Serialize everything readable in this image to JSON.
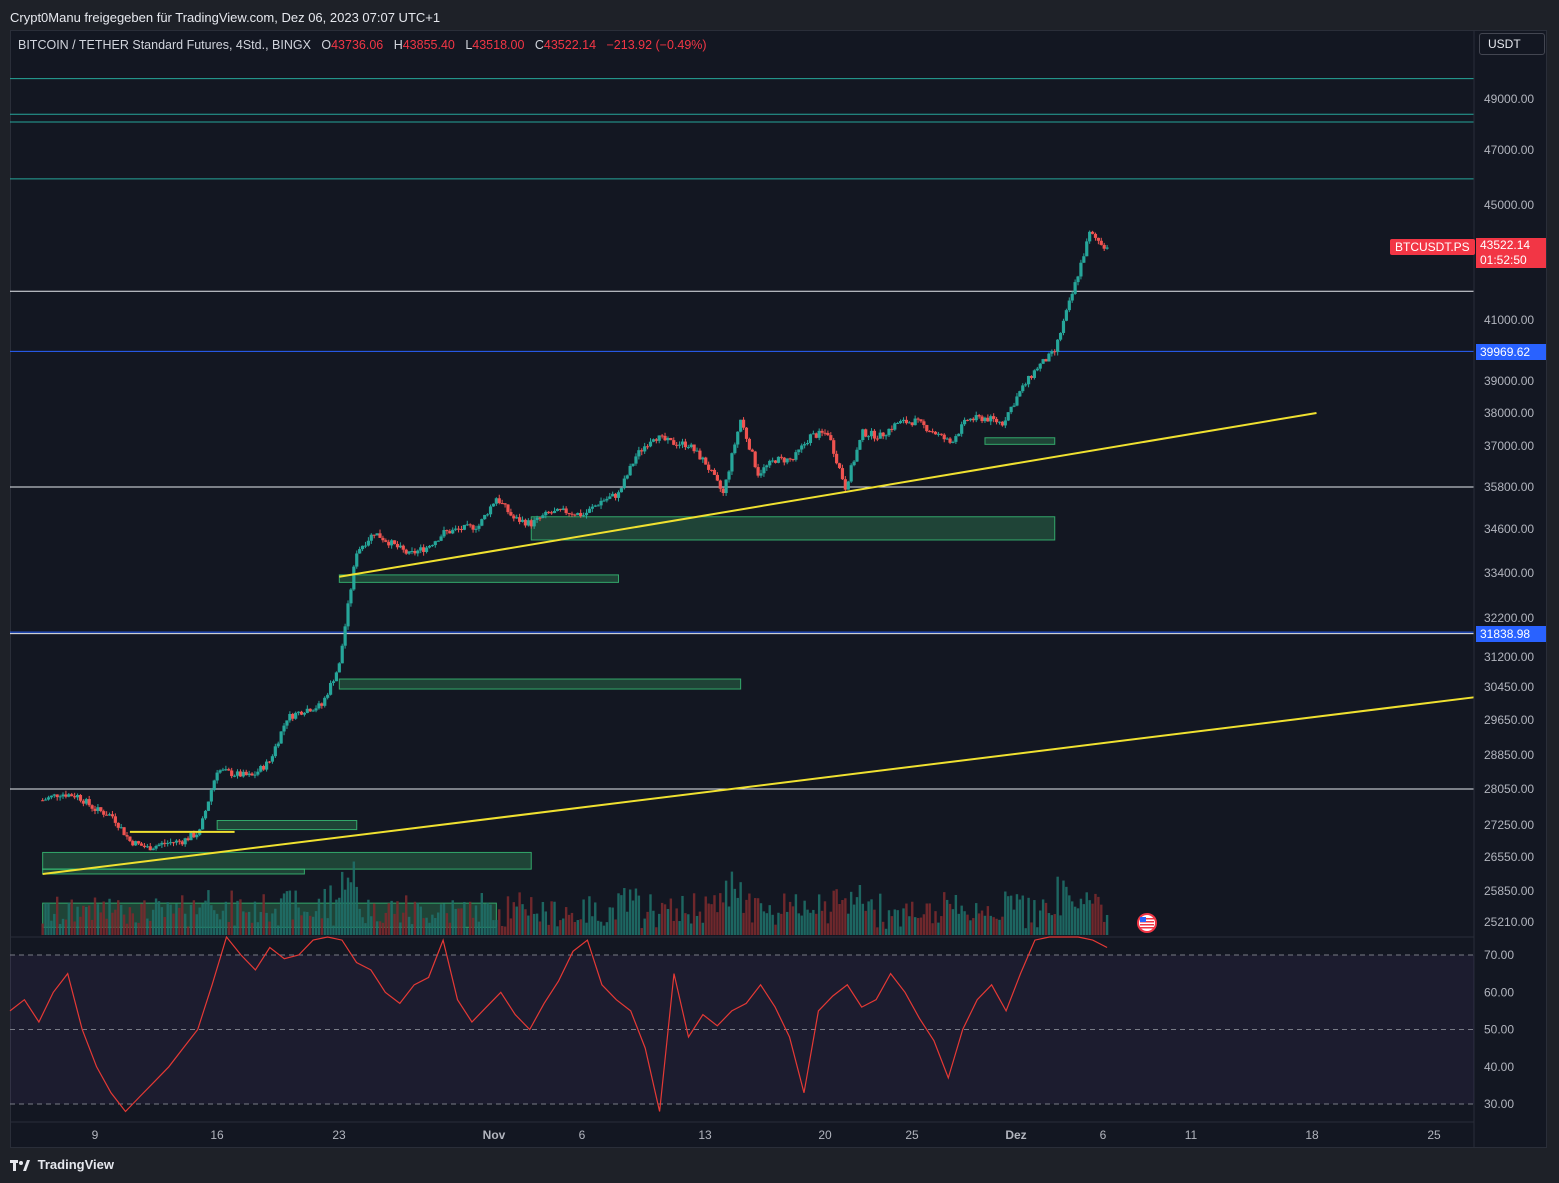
{
  "attribution": "Crypt0Manu freigegeben für TradingView.com, Dez 06, 2023 07:07 UTC+1",
  "symbol": {
    "title": "BITCOIN / TETHER Standard Futures, 4Std., BINGX",
    "o_label": "O",
    "o_value": "43736.06",
    "h_label": "H",
    "h_value": "43855.40",
    "l_label": "L",
    "l_value": "43518.00",
    "c_label": "C",
    "c_value": "43522.14",
    "change": "−213.92 (−0.49%)"
  },
  "currency_button": "USDT",
  "last_price": {
    "symbol_tag": "BTCUSDT.PS",
    "price": "43522.14",
    "countdown": "01:52:50"
  },
  "level_tags": {
    "upper_blue": "39969.62",
    "lower_blue": "31838.98"
  },
  "brand": "TradingView",
  "colors": {
    "background": "#131722",
    "up": "#26a69a",
    "down": "#ef5350",
    "trendline": "#f0e130",
    "zone": "#2e7d52",
    "blue_level": "#2962ff",
    "rsi_line": "#e53935"
  },
  "chart_data": [
    {
      "type": "candlestick",
      "title": "BITCOIN / TETHER Standard Futures, 4Std., BINGX",
      "y_ticks": [
        49000,
        47000,
        45000,
        41000,
        39000,
        38000,
        37000,
        35800,
        34600,
        33400,
        32200,
        31200,
        30450,
        29650,
        28850,
        28050,
        27250,
        26550,
        25850,
        25210
      ],
      "y_tick_labels": [
        "49000.00",
        "47000.00",
        "45000.00",
        "41000.00",
        "39000.00",
        "38000.00",
        "37000.00",
        "35800.00",
        "34600.00",
        "33400.00",
        "32200.00",
        "31200.00",
        "30450.00",
        "29650.00",
        "28850.00",
        "28050.00",
        "27250.00",
        "26550.00",
        "25850.00",
        "25210.00"
      ],
      "x_tick_labels": [
        "9",
        "16",
        "23",
        "Nov",
        "6",
        "13",
        "20",
        "25",
        "Dez",
        "6",
        "11",
        "18",
        "25"
      ],
      "close_path": [
        [
          "2023-10-06",
          27800
        ],
        [
          "2023-10-07",
          27950
        ],
        [
          "2023-10-08",
          27900
        ],
        [
          "2023-10-09",
          27600
        ],
        [
          "2023-10-10",
          27450
        ],
        [
          "2023-10-11",
          26900
        ],
        [
          "2023-10-12",
          26750
        ],
        [
          "2023-10-13",
          26850
        ],
        [
          "2023-10-14",
          26900
        ],
        [
          "2023-10-15",
          27100
        ],
        [
          "2023-10-16",
          28500
        ],
        [
          "2023-10-17",
          28400
        ],
        [
          "2023-10-18",
          28350
        ],
        [
          "2023-10-19",
          28700
        ],
        [
          "2023-10-20",
          29700
        ],
        [
          "2023-10-21",
          29900
        ],
        [
          "2023-10-22",
          30000
        ],
        [
          "2023-10-23",
          31000
        ],
        [
          "2023-10-24",
          34000
        ],
        [
          "2023-10-25",
          34500
        ],
        [
          "2023-10-26",
          34200
        ],
        [
          "2023-10-27",
          33900
        ],
        [
          "2023-10-28",
          34100
        ],
        [
          "2023-10-29",
          34500
        ],
        [
          "2023-10-30",
          34600
        ],
        [
          "2023-10-31",
          34700
        ],
        [
          "2023-11-01",
          35500
        ],
        [
          "2023-11-02",
          34900
        ],
        [
          "2023-11-03",
          34750
        ],
        [
          "2023-11-04",
          35050
        ],
        [
          "2023-11-05",
          35100
        ],
        [
          "2023-11-06",
          35000
        ],
        [
          "2023-11-07",
          35400
        ],
        [
          "2023-11-08",
          35600
        ],
        [
          "2023-11-09",
          36700
        ],
        [
          "2023-11-10",
          37300
        ],
        [
          "2023-11-11",
          37100
        ],
        [
          "2023-11-12",
          37050
        ],
        [
          "2023-11-13",
          36500
        ],
        [
          "2023-11-14",
          35600
        ],
        [
          "2023-11-15",
          37800
        ],
        [
          "2023-11-16",
          36200
        ],
        [
          "2023-11-17",
          36600
        ],
        [
          "2023-11-18",
          36600
        ],
        [
          "2023-11-19",
          37300
        ],
        [
          "2023-11-20",
          37400
        ],
        [
          "2023-11-21",
          35800
        ],
        [
          "2023-11-22",
          37400
        ],
        [
          "2023-11-23",
          37300
        ],
        [
          "2023-11-24",
          37700
        ],
        [
          "2023-11-25",
          37750
        ],
        [
          "2023-11-26",
          37450
        ],
        [
          "2023-11-27",
          37100
        ],
        [
          "2023-11-28",
          37800
        ],
        [
          "2023-11-29",
          37850
        ],
        [
          "2023-11-30",
          37700
        ],
        [
          "2023-12-01",
          38650
        ],
        [
          "2023-12-02",
          39450
        ],
        [
          "2023-12-03",
          39950
        ],
        [
          "2023-12-04",
          41900
        ],
        [
          "2023-12-05",
          44000
        ],
        [
          "2023-12-06",
          43522.14
        ]
      ],
      "horizontal_levels": {
        "green": [
          49800,
          48400,
          48100,
          45950
        ],
        "white": [
          42000,
          35800,
          31800,
          28050
        ],
        "blue": [
          39969.62,
          31838.98
        ]
      },
      "trendlines": [
        {
          "from": [
            "2023-10-23",
            33300
          ],
          "to": [
            "2023-12-18",
            38000
          ]
        },
        {
          "from": [
            "2023-10-06",
            26200
          ],
          "to": [
            "2023-12-30",
            30200
          ]
        },
        {
          "from": [
            "2023-10-11",
            27100
          ],
          "to": [
            "2023-10-17",
            27100
          ]
        }
      ],
      "demand_zones": [
        {
          "from": "2023-11-03",
          "to": "2023-12-03",
          "top": 34950,
          "bottom": 34300
        },
        {
          "from": "2023-10-23",
          "to": "2023-11-08",
          "top": 33350,
          "bottom": 33150
        },
        {
          "from": "2023-10-23",
          "to": "2023-11-15",
          "top": 30650,
          "bottom": 30400
        },
        {
          "from": "2023-10-16",
          "to": "2023-10-24",
          "top": 27350,
          "bottom": 27150
        },
        {
          "from": "2023-10-06",
          "to": "2023-11-03",
          "top": 26650,
          "bottom": 26300
        },
        {
          "from": "2023-10-06",
          "to": "2023-10-21",
          "top": 26300,
          "bottom": 26200
        },
        {
          "from": "2023-10-06",
          "to": "2023-11-01",
          "top": 25600,
          "bottom": 25100
        },
        {
          "from": "2023-11-29",
          "to": "2023-12-03",
          "top": 37250,
          "bottom": 37050
        }
      ]
    },
    {
      "type": "line",
      "y_ticks": [
        70,
        60,
        50,
        40,
        30
      ],
      "y_tick_labels": [
        "70.00",
        "60.00",
        "50.00",
        "40.00",
        "30.00"
      ],
      "band": [
        30,
        70
      ],
      "values": [
        55,
        58,
        52,
        60,
        65,
        50,
        40,
        33,
        28,
        32,
        36,
        40,
        45,
        50,
        62,
        78,
        70,
        66,
        72,
        69,
        70,
        74,
        80,
        74,
        68,
        66,
        60,
        57,
        62,
        64,
        74,
        58,
        52,
        56,
        60,
        54,
        50,
        57,
        63,
        71,
        74,
        62,
        58,
        55,
        45,
        28,
        65,
        48,
        54,
        51,
        55,
        57,
        62,
        56,
        48,
        33,
        55,
        59,
        62,
        56,
        58,
        65,
        60,
        53,
        47,
        37,
        50,
        58,
        62,
        55,
        65,
        74,
        76,
        80,
        76,
        74,
        72
      ]
    }
  ]
}
